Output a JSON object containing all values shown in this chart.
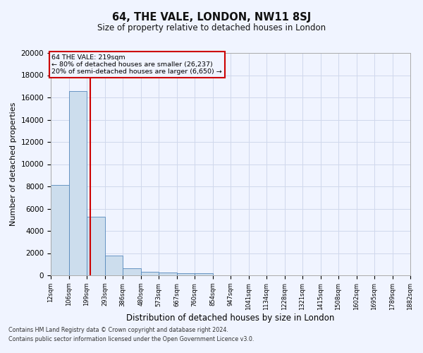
{
  "title": "64, THE VALE, LONDON, NW11 8SJ",
  "subtitle": "Size of property relative to detached houses in London",
  "xlabel": "Distribution of detached houses by size in London",
  "ylabel": "Number of detached properties",
  "footer_line1": "Contains HM Land Registry data © Crown copyright and database right 2024.",
  "footer_line2": "Contains public sector information licensed under the Open Government Licence v3.0.",
  "annotation_line1": "64 THE VALE: 219sqm",
  "annotation_line2": "← 80% of detached houses are smaller (26,237)",
  "annotation_line3": "20% of semi-detached houses are larger (6,650) →",
  "property_size": 219,
  "bar_color": "#ccdded",
  "bar_edge_color": "#5588bb",
  "redline_color": "#cc0000",
  "grid_color": "#d0d8ec",
  "background_color": "#f0f4ff",
  "ylim": [
    0,
    20000
  ],
  "yticks": [
    0,
    2000,
    4000,
    6000,
    8000,
    10000,
    12000,
    14000,
    16000,
    18000,
    20000
  ],
  "bin_edges": [
    12,
    106,
    199,
    293,
    386,
    480,
    573,
    667,
    760,
    854,
    947,
    1041,
    1134,
    1228,
    1321,
    1415,
    1508,
    1602,
    1695,
    1789,
    1882
  ],
  "bin_labels": [
    "12sqm",
    "106sqm",
    "199sqm",
    "293sqm",
    "386sqm",
    "480sqm",
    "573sqm",
    "667sqm",
    "760sqm",
    "854sqm",
    "947sqm",
    "1041sqm",
    "1134sqm",
    "1228sqm",
    "1321sqm",
    "1415sqm",
    "1508sqm",
    "1602sqm",
    "1695sqm",
    "1789sqm",
    "1882sqm"
  ],
  "bar_heights": [
    8100,
    16600,
    5300,
    1750,
    650,
    330,
    270,
    200,
    170,
    0,
    0,
    0,
    0,
    0,
    0,
    0,
    0,
    0,
    0,
    0
  ]
}
